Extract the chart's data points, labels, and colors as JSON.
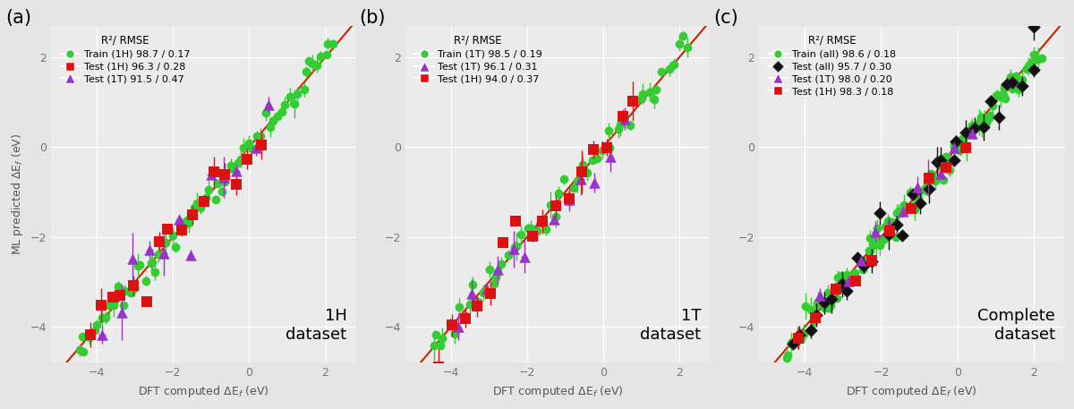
{
  "fig_width": 12.0,
  "fig_height": 4.57,
  "dpi": 100,
  "fig_bg_color": "#e5e5e5",
  "axes_bg_color": "#ebebeb",
  "panels": [
    {
      "label": "(a)",
      "dataset_label_line1": "1H",
      "dataset_label_line2": "dataset",
      "xlim": [
        -5.2,
        2.8
      ],
      "ylim": [
        -4.8,
        2.7
      ],
      "xticks": [
        -4,
        -2,
        0,
        2
      ],
      "yticks": [
        -4,
        -2,
        0,
        2
      ],
      "xlabel": "DFT computed ΔE$_f$ (eV)",
      "ylabel": "ML predicted ΔE$_f$ (eV)",
      "legend_title": "R²/ RMSE",
      "series": [
        {
          "label": "Train (1H) 98.7 / 0.17",
          "marker": "o",
          "color": "#33cc33",
          "zorder": 2,
          "ms": 7,
          "n": 65,
          "x_range": [
            -4.5,
            2.2
          ],
          "noise_x": 0.04,
          "noise_y": 0.14,
          "yerr_mean": 0.14,
          "yerr_std": 0.08,
          "xerr_mean": 0.04,
          "xerr_std": 0.02,
          "seed": 10
        },
        {
          "label": "Test (1H) 96.3 / 0.28",
          "marker": "s",
          "color": "#dd1111",
          "zorder": 4,
          "ms": 8,
          "n": 16,
          "x_range": [
            -4.2,
            0.3
          ],
          "noise_x": 0.04,
          "noise_y": 0.24,
          "yerr_mean": 0.18,
          "yerr_std": 0.1,
          "xerr_mean": 0.06,
          "xerr_std": 0.03,
          "seed": 20
        },
        {
          "label": "Test (1T) 91.5 / 0.47",
          "marker": "^",
          "color": "#9933cc",
          "zorder": 3,
          "ms": 9,
          "n": 12,
          "x_range": [
            -3.8,
            0.5
          ],
          "noise_x": 0.04,
          "noise_y": 0.42,
          "yerr_mean": 0.32,
          "yerr_std": 0.18,
          "xerr_mean": 0.06,
          "xerr_std": 0.03,
          "seed": 30
        }
      ]
    },
    {
      "label": "(b)",
      "dataset_label_line1": "1T",
      "dataset_label_line2": "dataset",
      "xlim": [
        -5.2,
        2.8
      ],
      "ylim": [
        -4.8,
        2.7
      ],
      "xticks": [
        -4,
        -2,
        0,
        2
      ],
      "yticks": [
        -4,
        -2,
        0,
        2
      ],
      "xlabel": "DFT computed ΔE$_f$ (eV)",
      "ylabel": "",
      "legend_title": "R²/ RMSE",
      "series": [
        {
          "label": "Train (1T) 98.5 / 0.19",
          "marker": "o",
          "color": "#33cc33",
          "zorder": 2,
          "ms": 7,
          "n": 55,
          "x_range": [
            -4.5,
            2.2
          ],
          "noise_x": 0.04,
          "noise_y": 0.17,
          "yerr_mean": 0.16,
          "yerr_std": 0.09,
          "xerr_mean": 0.04,
          "xerr_std": 0.02,
          "seed": 11
        },
        {
          "label": "Test (1T) 96.1 / 0.31",
          "marker": "^",
          "color": "#9933cc",
          "zorder": 3,
          "ms": 9,
          "n": 13,
          "x_range": [
            -3.8,
            0.5
          ],
          "noise_x": 0.04,
          "noise_y": 0.28,
          "yerr_mean": 0.22,
          "yerr_std": 0.12,
          "xerr_mean": 0.06,
          "xerr_std": 0.03,
          "seed": 21
        },
        {
          "label": "Test (1H) 94.0 / 0.37",
          "marker": "s",
          "color": "#dd1111",
          "zorder": 4,
          "ms": 8,
          "n": 16,
          "x_range": [
            -4.3,
            0.8
          ],
          "noise_x": 0.04,
          "noise_y": 0.33,
          "yerr_mean": 0.26,
          "yerr_std": 0.14,
          "xerr_mean": 0.06,
          "xerr_std": 0.03,
          "seed": 31
        }
      ]
    },
    {
      "label": "(c)",
      "dataset_label_line1": "Complete",
      "dataset_label_line2": "dataset",
      "xlim": [
        -5.2,
        2.8
      ],
      "ylim": [
        -4.8,
        2.7
      ],
      "xticks": [
        -4,
        -2,
        0,
        2
      ],
      "yticks": [
        -4,
        -2,
        0,
        2
      ],
      "xlabel": "DFT computed ΔE$_f$ (eV)",
      "ylabel": "",
      "legend_title": "R²/ RMSE",
      "series": [
        {
          "label": "Train (all) 98.6 / 0.18",
          "marker": "o",
          "color": "#33cc33",
          "zorder": 2,
          "ms": 7,
          "n": 100,
          "x_range": [
            -4.5,
            2.2
          ],
          "noise_x": 0.04,
          "noise_y": 0.15,
          "yerr_mean": 0.15,
          "yerr_std": 0.08,
          "xerr_mean": 0.04,
          "xerr_std": 0.02,
          "seed": 12
        },
        {
          "label": "Test (all) 95.7 / 0.30",
          "marker": "D",
          "color": "#111111",
          "zorder": 3,
          "ms": 7,
          "n": 32,
          "x_range": [
            -4.3,
            2.1
          ],
          "noise_x": 0.04,
          "noise_y": 0.27,
          "yerr_mean": 0.2,
          "yerr_std": 0.12,
          "xerr_mean": 0.06,
          "xerr_std": 0.03,
          "seed": 22
        },
        {
          "label": "Test (1T) 98.0 / 0.20",
          "marker": "^",
          "color": "#9933cc",
          "zorder": 4,
          "ms": 9,
          "n": 12,
          "x_range": [
            -3.6,
            0.3
          ],
          "noise_x": 0.04,
          "noise_y": 0.18,
          "yerr_mean": 0.14,
          "yerr_std": 0.08,
          "xerr_mean": 0.06,
          "xerr_std": 0.03,
          "seed": 32
        },
        {
          "label": "Test (1H) 98.3 / 0.18",
          "marker": "s",
          "color": "#dd1111",
          "zorder": 5,
          "ms": 8,
          "n": 10,
          "x_range": [
            -4.2,
            0.2
          ],
          "noise_x": 0.04,
          "noise_y": 0.16,
          "yerr_mean": 0.13,
          "yerr_std": 0.07,
          "xerr_mean": 0.06,
          "xerr_std": 0.03,
          "seed": 42
        }
      ]
    }
  ]
}
